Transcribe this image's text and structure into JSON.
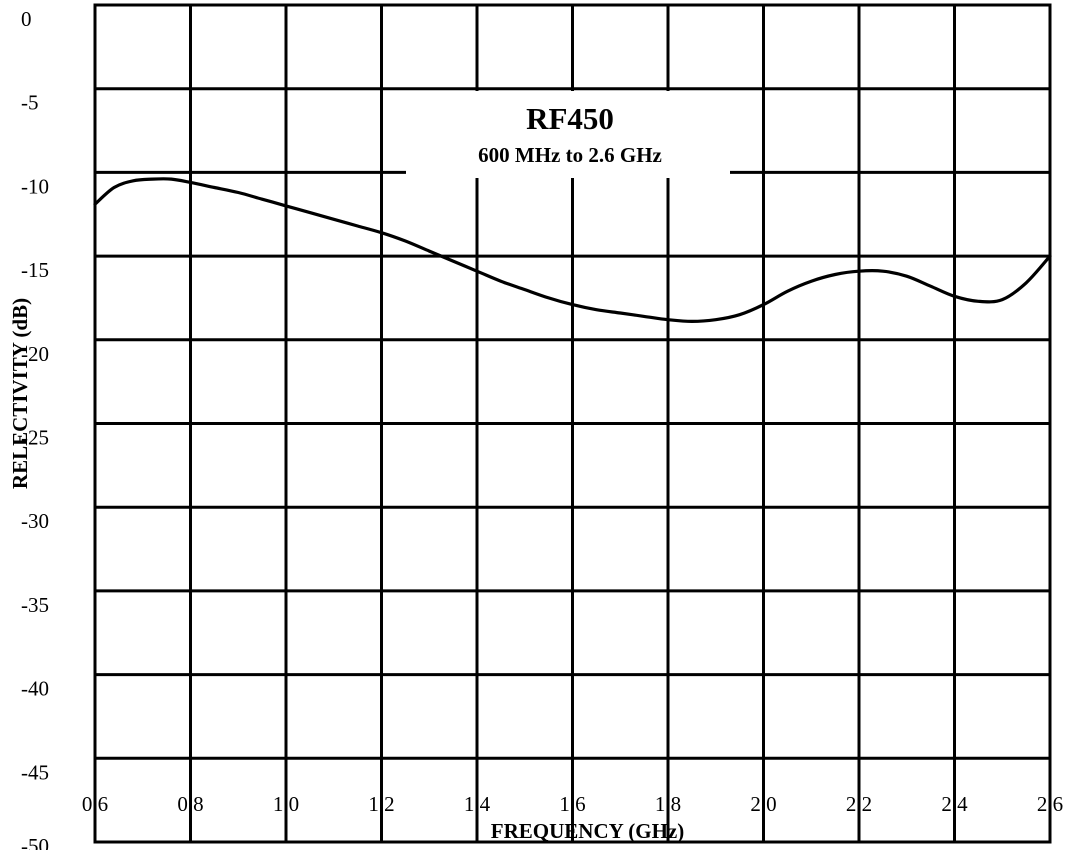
{
  "chart_data": {
    "type": "line",
    "title": "RF450",
    "subtitle": "600 MHz to 2.6 GHz",
    "xlabel": "FREQUENCY (GHz)",
    "ylabel": "RELECTIVITY (dB)",
    "xlim": [
      0.6,
      2.6
    ],
    "ylim": [
      -50,
      0
    ],
    "x_ticks": [
      "0.6",
      "0.8",
      "1.0",
      "1.2",
      "1.4",
      "1.6",
      "1.8",
      "2.0",
      "2.2",
      "2.4",
      "2.6"
    ],
    "y_ticks": [
      "0",
      "-5",
      "-10",
      "-15",
      "-20",
      "-25",
      "-30",
      "-35",
      "-40",
      "-45",
      "-50"
    ],
    "grid": true,
    "series": [
      {
        "x": [
          0.6,
          0.64,
          0.68,
          0.72,
          0.76,
          0.8,
          0.85,
          0.9,
          0.95,
          1.0,
          1.05,
          1.1,
          1.15,
          1.2,
          1.25,
          1.3,
          1.35,
          1.4,
          1.45,
          1.5,
          1.55,
          1.6,
          1.65,
          1.7,
          1.75,
          1.8,
          1.85,
          1.9,
          1.95,
          2.0,
          2.05,
          2.1,
          2.15,
          2.2,
          2.25,
          2.3,
          2.35,
          2.4,
          2.45,
          2.5,
          2.55,
          2.6
        ],
        "y": [
          -11.9,
          -10.9,
          -10.5,
          -10.4,
          -10.4,
          -10.6,
          -10.9,
          -11.2,
          -11.6,
          -12.0,
          -12.4,
          -12.8,
          -13.2,
          -13.6,
          -14.1,
          -14.7,
          -15.3,
          -15.9,
          -16.5,
          -17.0,
          -17.5,
          -17.9,
          -18.2,
          -18.4,
          -18.6,
          -18.8,
          -18.9,
          -18.8,
          -18.5,
          -17.9,
          -17.1,
          -16.5,
          -16.1,
          -15.9,
          -15.9,
          -16.2,
          -16.8,
          -17.4,
          -17.7,
          -17.6,
          -16.6,
          -15.0
        ]
      }
    ]
  }
}
